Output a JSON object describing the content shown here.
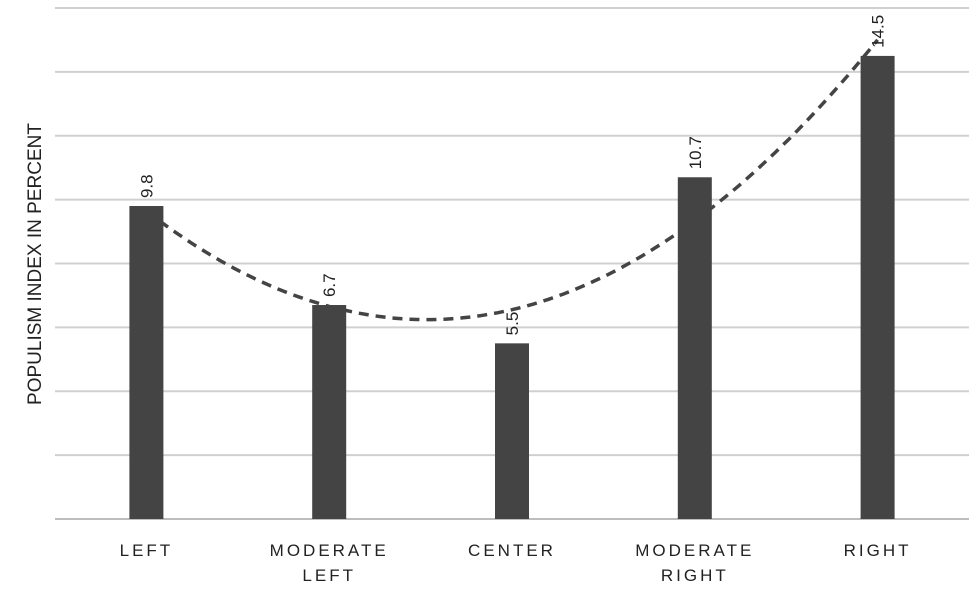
{
  "chart_data": {
    "type": "bar",
    "categories": [
      [
        "LEFT"
      ],
      [
        "MODERATE",
        "LEFT"
      ],
      [
        "CENTER"
      ],
      [
        "MODERATE",
        "RIGHT"
      ],
      [
        "RIGHT"
      ]
    ],
    "values": [
      9.8,
      6.7,
      5.5,
      10.7,
      14.5
    ],
    "data_labels": [
      "9.8",
      "6.7",
      "5.5",
      "10.7",
      "14.5"
    ],
    "title": "",
    "xlabel": "",
    "ylabel": "POPULISM INDEX IN PERCENT",
    "ylim": [
      0,
      16
    ],
    "ytick_step": 2,
    "y_tick_labels_shown": false,
    "grid": true,
    "legend": "none",
    "trendline": {
      "type": "polynomial",
      "order": 2,
      "style": "dashed"
    },
    "colors": {
      "bar": "#444444",
      "trendline": "#444444",
      "grid": "#d0d0d0"
    }
  }
}
